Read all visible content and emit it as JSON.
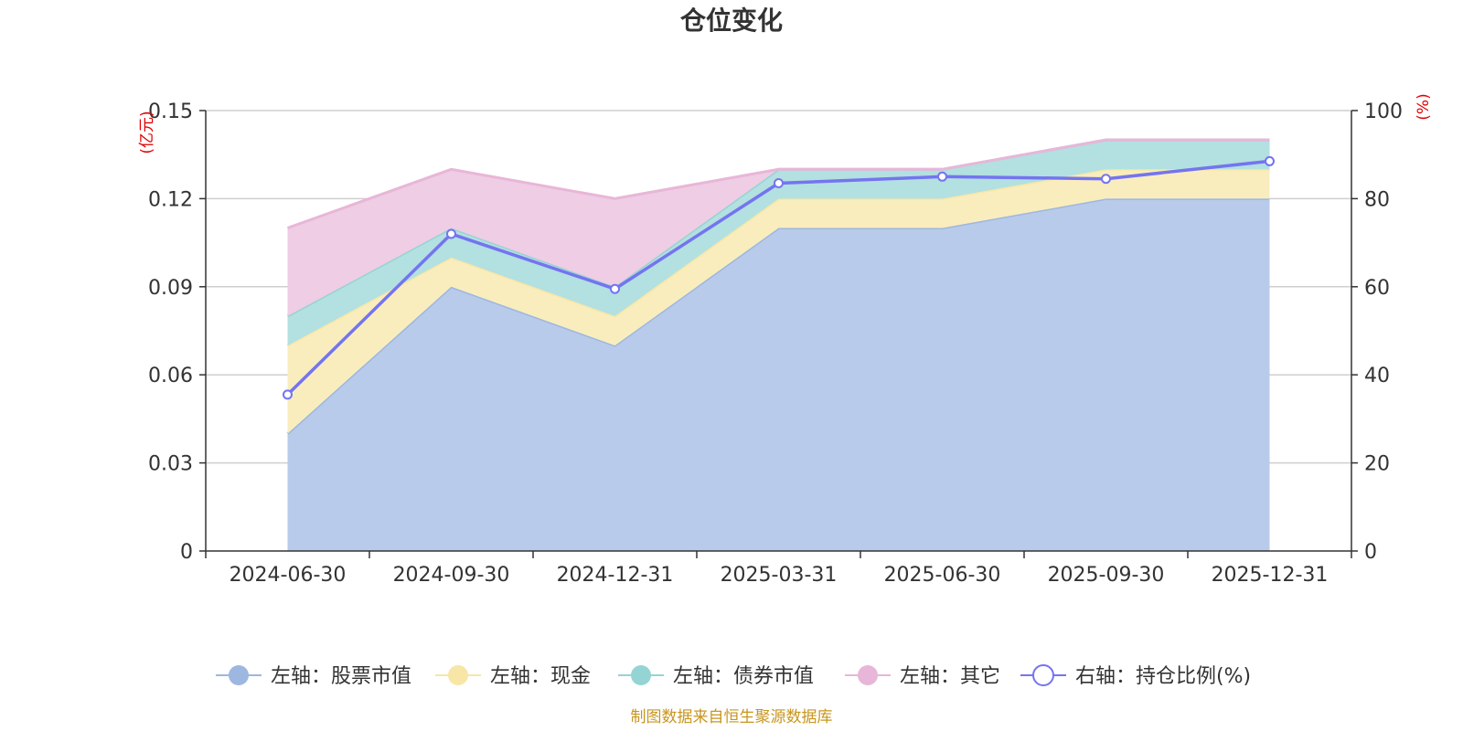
{
  "chart_data": {
    "type": "area",
    "title": "仓位变化",
    "x": [
      "2024-06-30",
      "2024-09-30",
      "2024-12-31",
      "2025-03-31",
      "2025-06-30",
      "2025-09-30",
      "2025-12-31"
    ],
    "left_axis": {
      "unit": "(亿元)",
      "ylim": [
        0,
        0.15
      ],
      "ticks": [
        "0",
        "0.03",
        "0.06",
        "0.09",
        "0.12",
        "0.15"
      ],
      "tick_values": [
        0,
        0.03,
        0.06,
        0.09,
        0.12,
        0.15
      ]
    },
    "right_axis": {
      "unit": "(%)",
      "ylim": [
        0,
        100
      ],
      "ticks": [
        "0",
        "20",
        "40",
        "60",
        "80",
        "100"
      ],
      "tick_values": [
        0,
        20,
        40,
        60,
        80,
        100
      ]
    },
    "stacked": true,
    "grid": true,
    "legend_position": "bottom",
    "series": [
      {
        "name": "左轴：股票市值",
        "axis": "left",
        "kind": "area",
        "color": "#9db7e0",
        "fill": "#b8cbea",
        "values": [
          0.04,
          0.09,
          0.07,
          0.11,
          0.11,
          0.12,
          0.12
        ]
      },
      {
        "name": "左轴：现金",
        "axis": "left",
        "kind": "area",
        "color": "#f7e6a6",
        "fill": "#f9edbe",
        "values": [
          0.03,
          0.01,
          0.01,
          0.01,
          0.01,
          0.01,
          0.01
        ]
      },
      {
        "name": "左轴：债券市值",
        "axis": "left",
        "kind": "area",
        "color": "#95d4d4",
        "fill": "#b3e0e0",
        "values": [
          0.01,
          0.01,
          0.01,
          0.01,
          0.01,
          0.01,
          0.01
        ]
      },
      {
        "name": "左轴：其它",
        "axis": "left",
        "kind": "area",
        "color": "#e8b6d8",
        "fill": "#efcde4",
        "values": [
          0.03,
          0.02,
          0.03,
          0.0,
          0.0,
          0.0,
          0.0
        ]
      },
      {
        "name": "右轴：持仓比例(%)",
        "axis": "right",
        "kind": "line",
        "color": "#7474f0",
        "values": [
          35.5,
          72.0,
          59.5,
          83.5,
          85.0,
          84.5,
          88.5
        ]
      }
    ],
    "source": "制图数据来自恒生聚源数据库"
  }
}
